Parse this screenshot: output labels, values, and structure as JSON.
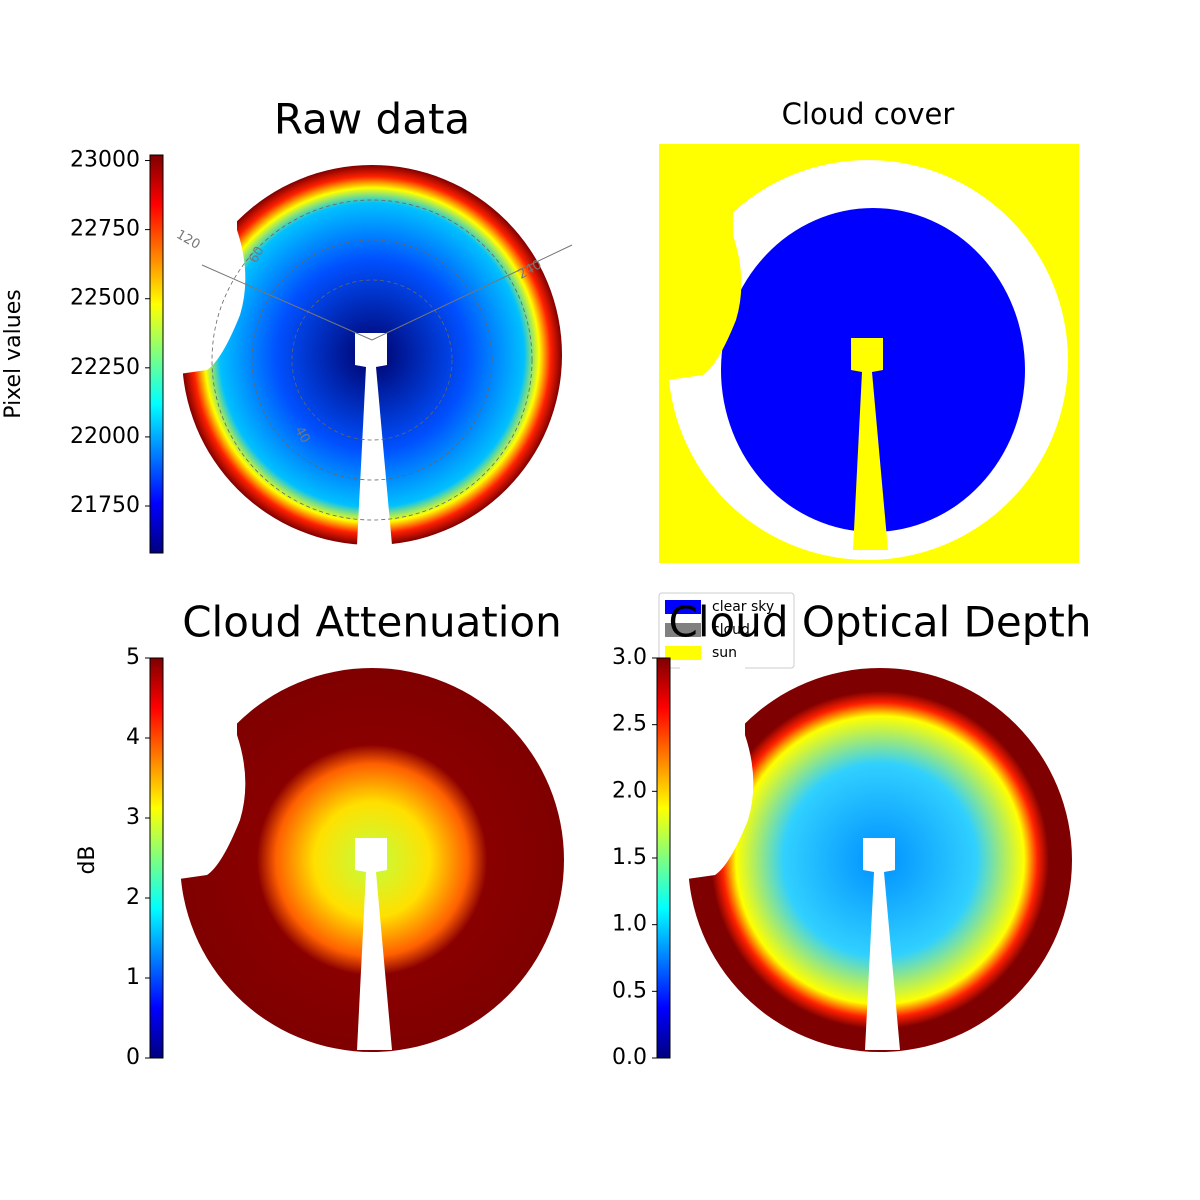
{
  "chart_data": [
    {
      "type": "image",
      "title": "Raw data",
      "colormap": "jet",
      "ylabel": "Pixel values",
      "ylim": [
        21580,
        23020
      ],
      "yticks": [
        21750,
        22000,
        22250,
        22500,
        22750,
        23000
      ],
      "annotations": [
        "120",
        "60",
        "240",
        "40"
      ]
    },
    {
      "type": "image",
      "title": "Cloud cover",
      "series": [
        {
          "name": "clear sky",
          "color": "#0000ff"
        },
        {
          "name": "cloud",
          "color": "#808080"
        },
        {
          "name": "sun",
          "color": "#ffff00"
        }
      ],
      "legend": "lower left"
    },
    {
      "type": "image",
      "title": "Cloud Attenuation",
      "colormap": "jet",
      "ylabel": "dB",
      "ylim": [
        0,
        5
      ],
      "yticks": [
        0,
        1,
        2,
        3,
        4,
        5
      ]
    },
    {
      "type": "image",
      "title": "Cloud Optical Depth",
      "colormap": "jet",
      "ylim": [
        0,
        3
      ],
      "yticks": [
        {
          "value": 0,
          "label": "0.0"
        },
        0.5,
        {
          "value": 1,
          "label": "1.0"
        },
        1.5,
        {
          "value": 2,
          "label": "2.0"
        },
        2.5,
        {
          "value": 3,
          "label": "3.0"
        }
      ]
    }
  ]
}
